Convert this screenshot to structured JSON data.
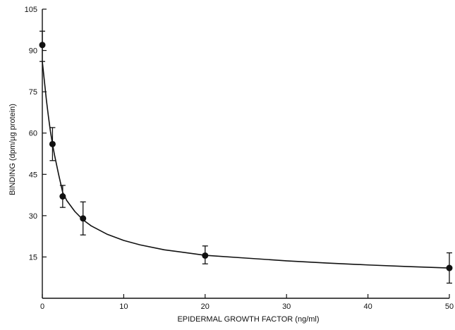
{
  "chart_data": {
    "type": "scatter",
    "title": "",
    "xlabel": "EPIDERMAL GROWTH FACTOR (ng/ml)",
    "ylabel": "BINDING (dpm/µg protein)",
    "xlim": [
      0,
      50
    ],
    "ylim": [
      0,
      105
    ],
    "xticks": [
      0,
      10,
      20,
      30,
      40,
      50
    ],
    "xtick_labels": [
      "0",
      "10",
      "20",
      "30",
      "40",
      "50"
    ],
    "yticks": [
      15,
      30,
      45,
      60,
      75,
      90,
      105
    ],
    "ytick_labels": [
      "15",
      "30",
      "45",
      "60",
      "75",
      "90",
      "105"
    ],
    "grid": false,
    "legend": "none",
    "marker_color": "#111111",
    "points": [
      {
        "x": 0,
        "y": 92,
        "err_low": 86,
        "err_high": 97
      },
      {
        "x": 1.25,
        "y": 56,
        "err_low": 50,
        "err_high": 62
      },
      {
        "x": 2.5,
        "y": 37,
        "err_low": 33,
        "err_high": 41
      },
      {
        "x": 5,
        "y": 29,
        "err_low": 23,
        "err_high": 35
      },
      {
        "x": 20,
        "y": 15.5,
        "err_low": 12.5,
        "err_high": 19
      },
      {
        "x": 50,
        "y": 11,
        "err_low": 5.5,
        "err_high": 16.5
      }
    ],
    "fit_curve": {
      "x": [
        0,
        0.25,
        0.5,
        0.75,
        1,
        1.25,
        1.5,
        2,
        2.5,
        3,
        4,
        5,
        6,
        8,
        10,
        12,
        15,
        20,
        25,
        30,
        35,
        40,
        45,
        50
      ],
      "y": [
        86,
        79,
        72,
        66,
        60.5,
        56,
        52,
        45,
        38.5,
        35.5,
        31.5,
        28.5,
        26.3,
        23.2,
        21,
        19.4,
        17.6,
        15.6,
        14.6,
        13.6,
        12.8,
        12.1,
        11.5,
        11
      ]
    }
  }
}
